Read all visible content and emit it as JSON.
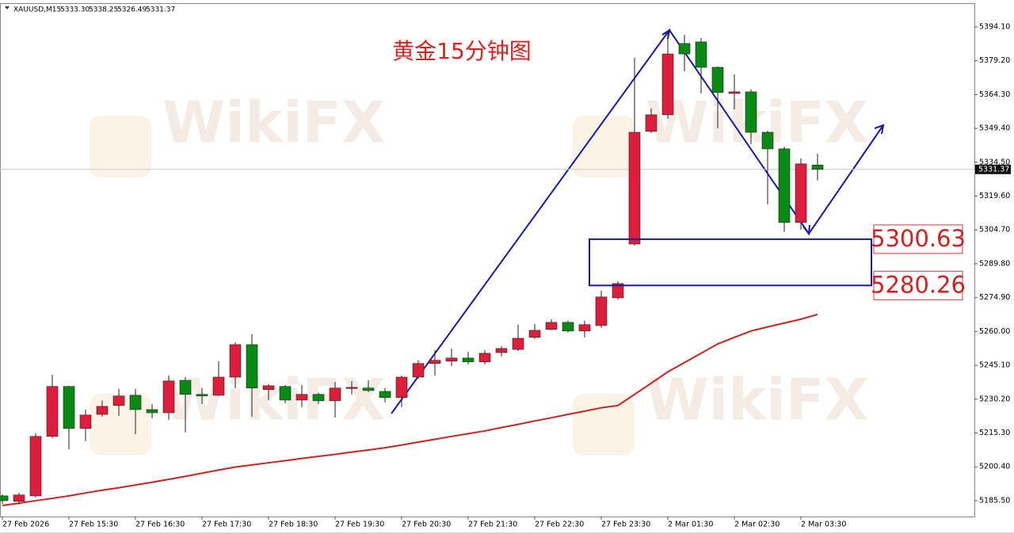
{
  "chart_data": {
    "type": "candlestick",
    "title": "黄金15分钟图",
    "symbol": "XAUUSD,M15",
    "header_values": [
      "5333.30",
      "5338.25",
      "5326.49",
      "5331.37"
    ],
    "watermark": "WikiFX",
    "categories": [
      "27 Feb 2026",
      null,
      null,
      null,
      "27 Feb 15:30",
      null,
      null,
      null,
      "27 Feb 16:30",
      null,
      null,
      null,
      "27 Feb 17:30",
      null,
      null,
      null,
      "27 Feb 18:30",
      null,
      null,
      null,
      "27 Feb 19:30",
      null,
      null,
      null,
      "27 Feb 20:30",
      null,
      null,
      null,
      "27 Feb 21:30",
      null,
      null,
      null,
      "27 Feb 22:30",
      null,
      null,
      null,
      "27 Feb 23:30",
      null,
      null,
      null,
      "2 Mar 01:30",
      null,
      null,
      null,
      "2 Mar 02:30",
      null,
      null,
      null,
      "2 Mar 03:30",
      null
    ],
    "open": [
      5187.6,
      5185.2,
      5187.6,
      5213.8,
      5235.8,
      5217.3,
      5223.5,
      5227.4,
      5231.9,
      5225.6,
      5224.2,
      5238.5,
      5232.3,
      5231.9,
      5239.9,
      5254.2,
      5234.4,
      5235.8,
      5229.8,
      5232.3,
      5229.5,
      5235.1,
      5235.1,
      5233.6,
      5230.9,
      5239.9,
      5245.9,
      5246.9,
      5248.3,
      5246.6,
      5250.7,
      5252.1,
      5257.4,
      5260.9,
      5264.0,
      5260.2,
      5262.6,
      5274.8,
      5298.5,
      5348.1,
      5355.4,
      5386.8,
      5387.5,
      5376.3,
      5364.8,
      5365.5,
      5347.7,
      5340.4,
      5308.0,
      5333.3
    ],
    "high": [
      5188.3,
      5189.0,
      5215.2,
      5241.0,
      5236.1,
      5225.6,
      5229.5,
      5234.7,
      5234.7,
      5228.1,
      5240.6,
      5239.9,
      5235.1,
      5246.9,
      5255.3,
      5258.8,
      5236.8,
      5236.4,
      5236.4,
      5233.0,
      5237.8,
      5238.2,
      5238.5,
      5235.1,
      5240.6,
      5247.3,
      5251.8,
      5252.5,
      5251.1,
      5251.8,
      5253.5,
      5263.0,
      5263.3,
      5265.4,
      5264.7,
      5264.7,
      5278.0,
      5282.1,
      5380.5,
      5358.2,
      5392.0,
      5390.6,
      5389.2,
      5376.7,
      5373.2,
      5366.6,
      5348.4,
      5341.4,
      5336.2,
      5338.25
    ],
    "low": [
      5184.1,
      5183.8,
      5186.9,
      5213.1,
      5208.2,
      5211.7,
      5222.5,
      5222.8,
      5214.8,
      5221.8,
      5221.1,
      5215.5,
      5228.1,
      5231.6,
      5235.1,
      5222.5,
      5229.8,
      5228.4,
      5226.7,
      5228.1,
      5222.1,
      5232.3,
      5233.3,
      5228.8,
      5226.7,
      5239.2,
      5240.6,
      5244.8,
      5245.5,
      5245.5,
      5249.0,
      5251.4,
      5256.7,
      5260.5,
      5259.5,
      5257.4,
      5261.6,
      5274.1,
      5297.8,
      5347.4,
      5353.6,
      5374.6,
      5364.8,
      5349.5,
      5357.8,
      5342.5,
      5316.0,
      5303.8,
      5304.8,
      5326.49
    ],
    "close": [
      5185.5,
      5188.0,
      5213.8,
      5235.8,
      5217.3,
      5223.2,
      5227.0,
      5231.6,
      5225.6,
      5224.2,
      5238.2,
      5232.3,
      5231.6,
      5239.9,
      5254.2,
      5235.1,
      5236.1,
      5229.8,
      5232.3,
      5229.5,
      5235.1,
      5235.4,
      5234.0,
      5230.9,
      5239.9,
      5245.9,
      5247.3,
      5248.3,
      5246.6,
      5250.4,
      5252.5,
      5257.0,
      5260.5,
      5264.0,
      5260.2,
      5263.0,
      5275.2,
      5281.1,
      5347.7,
      5355.4,
      5382.2,
      5382.2,
      5376.3,
      5365.2,
      5365.5,
      5347.7,
      5340.4,
      5308.0,
      5333.8,
      5331.37
    ],
    "up_color": "#dc1e3c",
    "down_color": "#0a8a14",
    "ma": {
      "color": "#cc2222",
      "values": [
        5183.4,
        5184.4,
        5185.5,
        5186.5,
        5187.6,
        5188.9,
        5190.1,
        5191.2,
        5192.4,
        5193.6,
        5194.9,
        5196.2,
        5197.6,
        5199.0,
        5200.3,
        5201.2,
        5202.2,
        5203.1,
        5204.1,
        5205.0,
        5205.9,
        5206.9,
        5207.8,
        5208.8,
        5210.0,
        5211.3,
        5212.5,
        5213.8,
        5215.0,
        5216.2,
        5217.7,
        5219.1,
        5220.6,
        5222.0,
        5223.5,
        5224.9,
        5226.4,
        5227.4,
        5232.3,
        5237.2,
        5242.2,
        5246.3,
        5250.4,
        5254.5,
        5257.4,
        5260.2,
        5262.0,
        5263.7,
        5265.4,
        5267.5
      ]
    },
    "last_price": 5331.37,
    "zone": [
      5300.63,
      5280.26
    ],
    "ylim": [
      5178.5,
      5404.2
    ],
    "yticks": [
      {
        "value": 5185.5,
        "label": "5185.50"
      },
      {
        "value": 5200.4,
        "label": "5200.40"
      },
      {
        "value": 5215.3,
        "label": "5215.30"
      },
      {
        "value": 5230.2,
        "label": "5230.20"
      },
      {
        "value": 5245.1,
        "label": "5245.10"
      },
      {
        "value": 5260.0,
        "label": "5260.00"
      },
      {
        "value": 5274.9,
        "label": "5274.90"
      },
      {
        "value": 5289.8,
        "label": "5289.80"
      },
      {
        "value": 5304.7,
        "label": "5304.70"
      },
      {
        "value": 5319.6,
        "label": "5319.60"
      },
      {
        "value": 5334.5,
        "label": "5334.50"
      },
      {
        "value": 5349.4,
        "label": "5349.40"
      },
      {
        "value": 5364.3,
        "label": "5364.30"
      },
      {
        "value": 5379.2,
        "label": "5379.20"
      },
      {
        "value": 5394.1,
        "label": "5394.10"
      }
    ]
  }
}
